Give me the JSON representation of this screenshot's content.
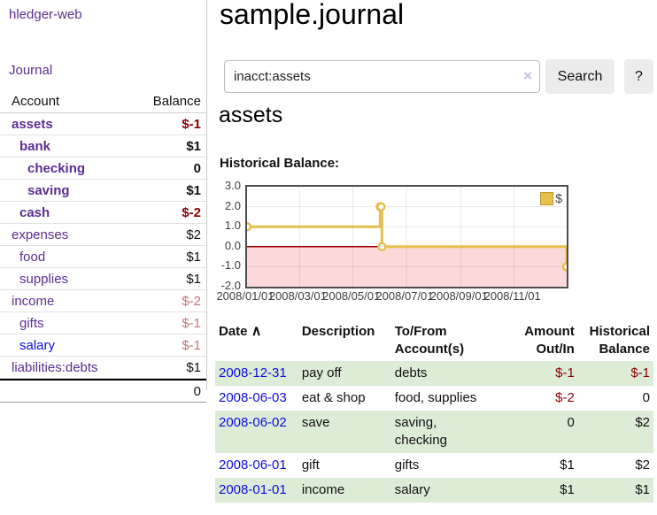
{
  "app": {
    "brand": "hledger-web",
    "nav_journal": "Journal"
  },
  "sidebar": {
    "columns": {
      "account": "Account",
      "balance": "Balance"
    },
    "accounts": [
      {
        "name": "assets",
        "balance": "$-1",
        "depth": 1,
        "bold": true,
        "neg": "strong",
        "link": "visited"
      },
      {
        "name": "bank",
        "balance": "$1",
        "depth": 2,
        "bold": true,
        "neg": null,
        "link": "visited"
      },
      {
        "name": "checking",
        "balance": "0",
        "depth": 3,
        "bold": true,
        "neg": null,
        "link": "visited"
      },
      {
        "name": "saving",
        "balance": "$1",
        "depth": 3,
        "bold": true,
        "neg": null,
        "link": "visited"
      },
      {
        "name": "cash",
        "balance": "$-2",
        "depth": 2,
        "bold": true,
        "neg": "strong",
        "link": "visited"
      },
      {
        "name": "expenses",
        "balance": "$2",
        "depth": 1,
        "bold": false,
        "neg": null,
        "link": "visited"
      },
      {
        "name": "food",
        "balance": "$1",
        "depth": 2,
        "bold": false,
        "neg": null,
        "link": "visited"
      },
      {
        "name": "supplies",
        "balance": "$1",
        "depth": 2,
        "bold": false,
        "neg": null,
        "link": "visited"
      },
      {
        "name": "income",
        "balance": "$-2",
        "depth": 1,
        "bold": false,
        "neg": "faded",
        "link": "visited"
      },
      {
        "name": "gifts",
        "balance": "$-1",
        "depth": 2,
        "bold": false,
        "neg": "faded",
        "link": "visited"
      },
      {
        "name": "salary",
        "balance": "$-1",
        "depth": 2,
        "bold": false,
        "neg": "faded",
        "link": "new"
      },
      {
        "name": "liabilities:debts",
        "balance": "$1",
        "depth": 1,
        "bold": false,
        "neg": null,
        "link": "visited"
      }
    ],
    "total": "0"
  },
  "header": {
    "title": "sample.journal"
  },
  "search": {
    "value": "inacct:assets",
    "clear_icon": "×",
    "button_label": "Search",
    "help_label": "?"
  },
  "main": {
    "account_heading": "assets",
    "chart_label": "Historical Balance:"
  },
  "chart_data": {
    "type": "line",
    "step": true,
    "title": "Historical Balance",
    "series": [
      {
        "name": "$",
        "color": "#e7bf4e",
        "points": [
          [
            "2008-01-01",
            1
          ],
          [
            "2008-06-01",
            2
          ],
          [
            "2008-06-02",
            2
          ],
          [
            "2008-06-03",
            0
          ],
          [
            "2008-12-31",
            -1
          ]
        ]
      }
    ],
    "xlim": [
      "2008-01-01",
      "2008-12-31"
    ],
    "ylim": [
      -2,
      3
    ],
    "y_ticks": [
      "3.0",
      "2.0",
      "1.0",
      "0.0",
      "-1.0",
      "-2.0"
    ],
    "x_ticks": [
      "2008/01/01",
      "2008/03/01",
      "2008/05/01",
      "2008/07/01",
      "2008/09/01",
      "2008/11/01"
    ],
    "legend": {
      "label": "$",
      "position": "top-right"
    },
    "grid": true,
    "negative_region_color": "#fbd9da",
    "zero_line_color": "#9b0000"
  },
  "register": {
    "columns": {
      "date": "Date",
      "sort_icon": "∧",
      "description": "Description",
      "accounts": "To/From Account(s)",
      "amount": "Amount Out/In",
      "balance": "Historical Balance"
    },
    "rows": [
      {
        "date": "2008-12-31",
        "description": "pay off",
        "accounts": "debts",
        "amount": "$-1",
        "amount_neg": true,
        "balance": "$-1",
        "balance_neg": true
      },
      {
        "date": "2008-06-03",
        "description": "eat & shop",
        "accounts": "food, supplies",
        "amount": "$-2",
        "amount_neg": true,
        "balance": "0",
        "balance_neg": false
      },
      {
        "date": "2008-06-02",
        "description": "save",
        "accounts": "saving,\nchecking",
        "amount": "0",
        "amount_neg": false,
        "balance": "$2",
        "balance_neg": false
      },
      {
        "date": "2008-06-01",
        "description": "gift",
        "accounts": "gifts",
        "amount": "$1",
        "amount_neg": false,
        "balance": "$2",
        "balance_neg": false
      },
      {
        "date": "2008-01-01",
        "description": "income",
        "accounts": "salary",
        "amount": "$1",
        "amount_neg": false,
        "balance": "$1",
        "balance_neg": false
      }
    ]
  }
}
